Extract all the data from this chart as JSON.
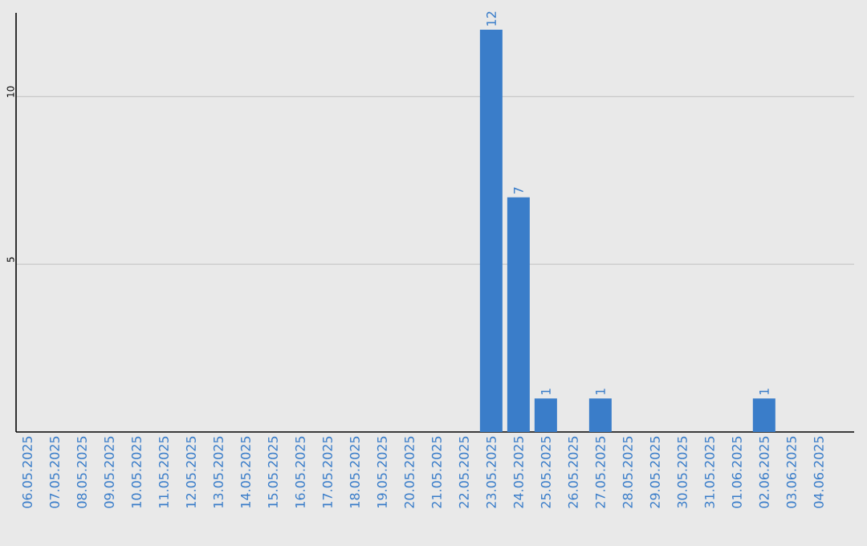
{
  "chart_data": {
    "type": "bar",
    "categories": [
      "06.05.2025",
      "07.05.2025",
      "08.05.2025",
      "09.05.2025",
      "10.05.2025",
      "11.05.2025",
      "12.05.2025",
      "13.05.2025",
      "14.05.2025",
      "15.05.2025",
      "16.05.2025",
      "17.05.2025",
      "18.05.2025",
      "19.05.2025",
      "20.05.2025",
      "21.05.2025",
      "22.05.2025",
      "23.05.2025",
      "24.05.2025",
      "25.05.2025",
      "26.05.2025",
      "27.05.2025",
      "28.05.2025",
      "29.05.2025",
      "30.05.2025",
      "31.05.2025",
      "01.06.2025",
      "02.06.2025",
      "03.06.2025",
      "04.06.2025"
    ],
    "values": [
      0,
      0,
      0,
      0,
      0,
      0,
      0,
      0,
      0,
      0,
      0,
      0,
      0,
      0,
      0,
      0,
      0,
      12,
      7,
      1,
      0,
      1,
      0,
      0,
      0,
      0,
      0,
      1,
      0,
      0
    ],
    "value_labels": [
      null,
      null,
      null,
      null,
      null,
      null,
      null,
      null,
      null,
      null,
      null,
      null,
      null,
      null,
      null,
      null,
      null,
      "12",
      "7",
      "1",
      null,
      "1",
      null,
      null,
      null,
      null,
      null,
      "1",
      null,
      null
    ],
    "color": "#3a7dc9",
    "ylim": [
      0,
      12.5
    ],
    "yticks": [
      5,
      10
    ],
    "grid": "y"
  }
}
